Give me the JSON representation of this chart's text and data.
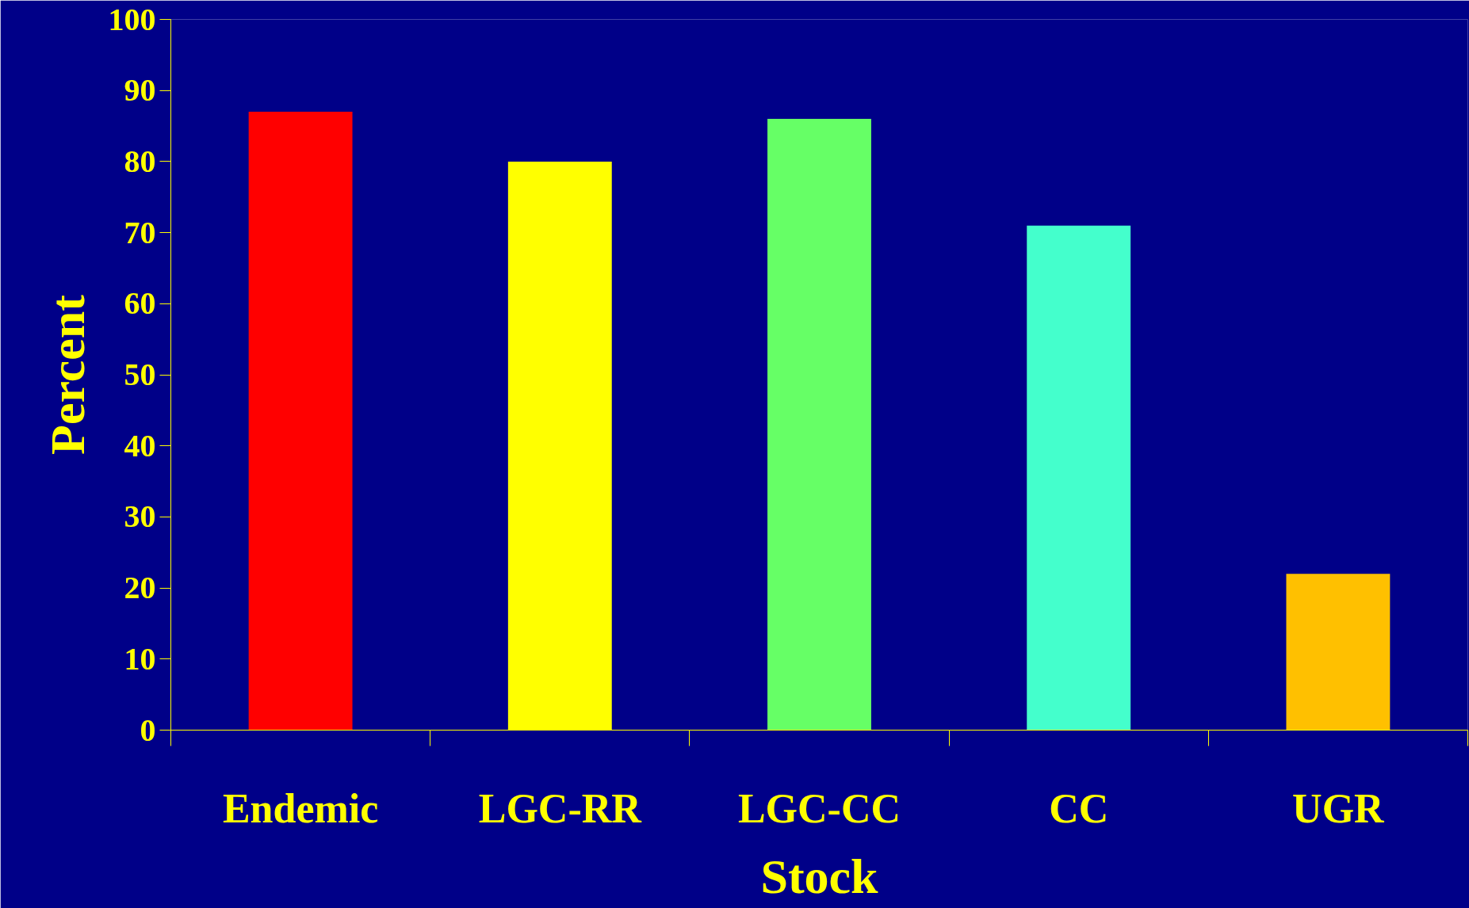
{
  "chart_data": {
    "type": "bar",
    "xlabel": "Stock",
    "ylabel": "Percent",
    "categories": [
      "Endemic",
      "LGC-RR",
      "LGC-CC",
      "CC",
      "UGR"
    ],
    "values": [
      87,
      80,
      86,
      71,
      22
    ],
    "colors": [
      "#ff0000",
      "#ffff00",
      "#66ff66",
      "#44ffcc",
      "#ffc000"
    ],
    "ylim": [
      0,
      100
    ],
    "yticks": [
      0,
      10,
      20,
      30,
      40,
      50,
      60,
      70,
      80,
      90,
      100
    ],
    "grid": false
  }
}
